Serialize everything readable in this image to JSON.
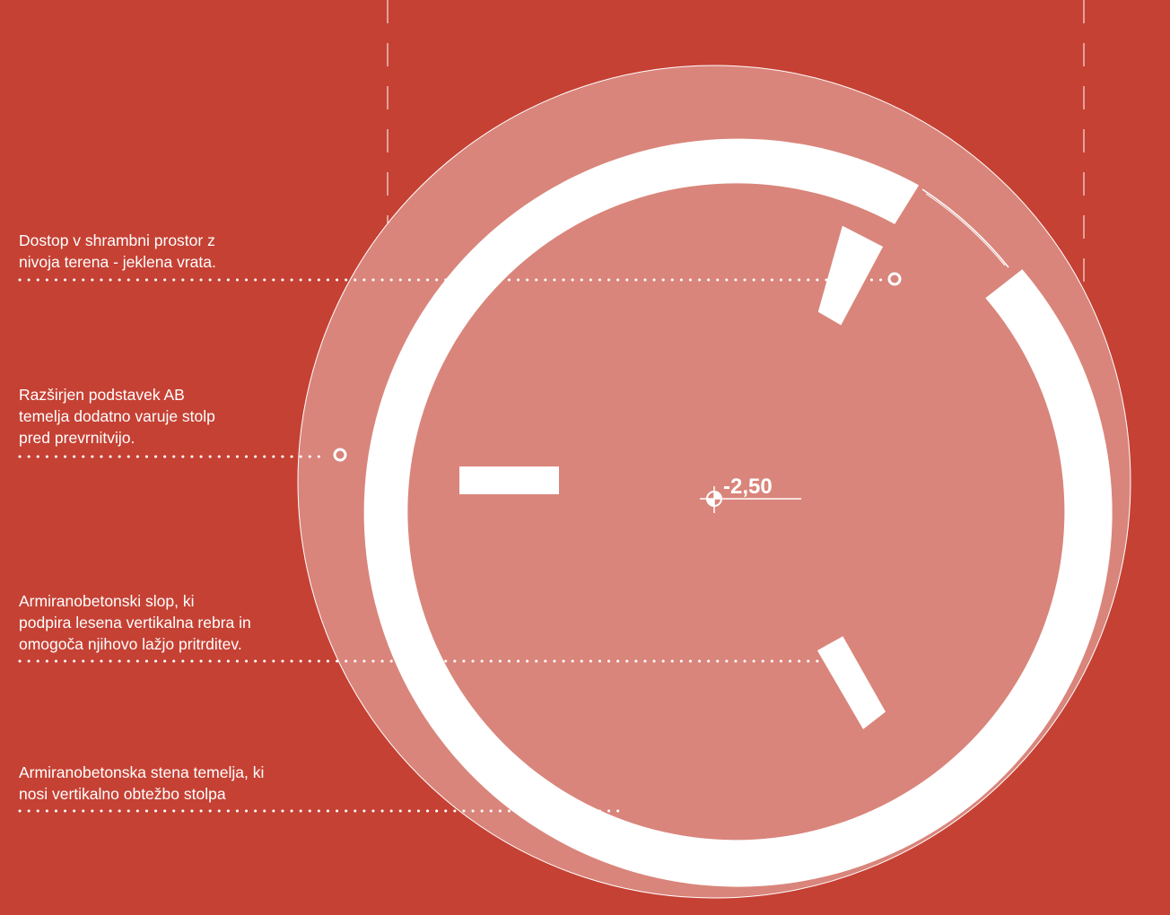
{
  "annotations": [
    {
      "text": "Dostop v shrambni prostor z\nnivoja terena - jeklena vrata."
    },
    {
      "text": "Razširjen podstavek AB\ntemelja dodatno varuje stolp\npred prevrnitvijo."
    },
    {
      "text": "Armiranobetonski slop, ki\npodpira lesena vertikalna rebra in\nomogoča njihovo lažjo pritrditev."
    },
    {
      "text": "Armiranobetonska stena temelja, ki\nnosi vertikalno obtežbo stolpa"
    }
  ],
  "elevation": {
    "label": "-2,50"
  },
  "colors": {
    "background": "#c54134",
    "foundation_slab": "#d9857b",
    "wall": "#ffffff",
    "text": "#ffffff"
  }
}
